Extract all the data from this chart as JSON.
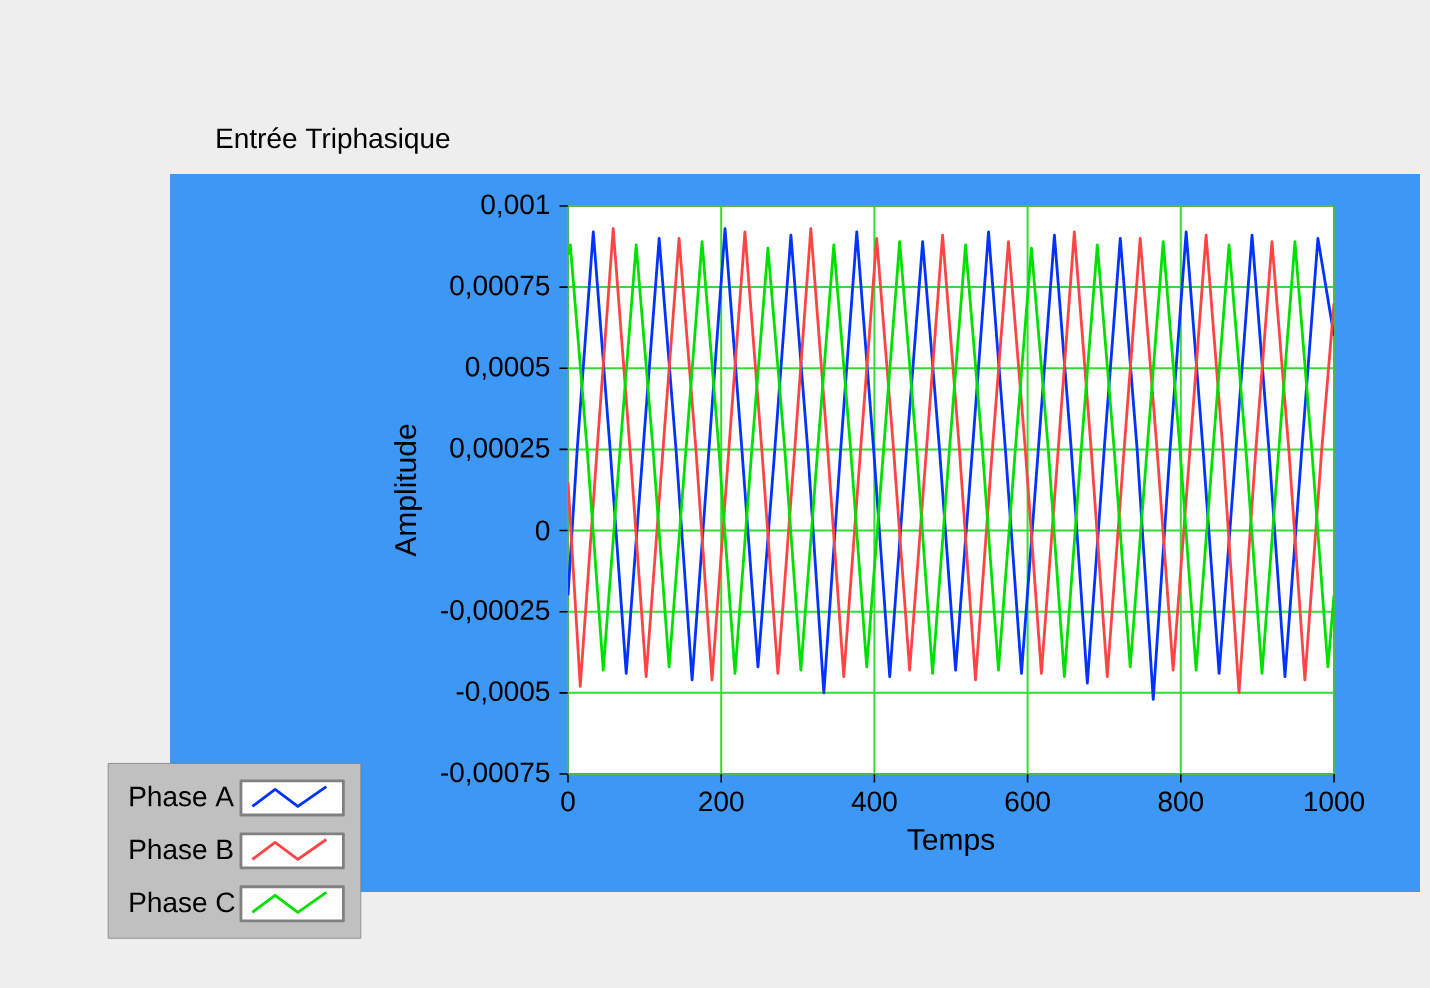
{
  "chart_data": {
    "type": "line",
    "title": "Entrée Triphasique",
    "xlabel": "Temps",
    "ylabel": "Amplitude",
    "xlim": [
      0,
      1000
    ],
    "ylim": [
      -0.00075,
      0.001
    ],
    "xticks": [
      0,
      200,
      400,
      600,
      800,
      1000
    ],
    "yticks": [
      {
        "value": -0.00075,
        "label": "-0,00075"
      },
      {
        "value": -0.0005,
        "label": "-0,0005"
      },
      {
        "value": -0.00025,
        "label": "-0,00025"
      },
      0,
      {
        "value": 0.00025,
        "label": "0,00025"
      },
      {
        "value": 0.0005,
        "label": "0,0005"
      },
      {
        "value": 0.00075,
        "label": "0,00075"
      },
      {
        "value": 0.001,
        "label": "0,001"
      }
    ],
    "grid": true,
    "legend": "bottom left",
    "series": [
      {
        "name": "Phase A",
        "color": "#0033ff",
        "x": [
          0,
          12,
          33,
          55,
          76,
          98,
          119,
          141,
          162,
          184,
          205,
          227,
          248,
          270,
          291,
          313,
          334,
          356,
          377,
          399,
          420,
          442,
          463,
          485,
          506,
          528,
          549,
          571,
          592,
          614,
          635,
          657,
          678,
          700,
          721,
          743,
          764,
          786,
          807,
          829,
          850,
          872,
          893,
          915,
          936,
          958,
          979,
          1000
        ],
        "values": [
          -0.0002,
          0.00025,
          0.00092,
          0.00025,
          -0.00044,
          0.00025,
          0.0009,
          0.00025,
          -0.00046,
          0.00025,
          0.00093,
          0.00025,
          -0.00042,
          0.00025,
          0.00091,
          0.00025,
          -0.0005,
          0.00025,
          0.00092,
          0.00025,
          -0.00045,
          0.00025,
          0.00089,
          0.00025,
          -0.00043,
          0.00025,
          0.00092,
          0.00025,
          -0.00044,
          0.00025,
          0.00091,
          0.00025,
          -0.00047,
          0.00025,
          0.0009,
          0.00025,
          -0.00052,
          0.00025,
          0.00092,
          0.00025,
          -0.00044,
          0.00025,
          0.00091,
          0.00025,
          -0.00045,
          0.00025,
          0.0009,
          0.0006
        ]
      },
      {
        "name": "Phase B",
        "color": "#ff4444",
        "x": [
          0,
          16,
          38,
          59,
          81,
          102,
          124,
          145,
          167,
          188,
          210,
          231,
          253,
          274,
          296,
          317,
          339,
          360,
          382,
          403,
          425,
          446,
          468,
          489,
          511,
          532,
          554,
          575,
          597,
          618,
          640,
          661,
          683,
          704,
          726,
          747,
          769,
          790,
          812,
          833,
          855,
          876,
          898,
          919,
          941,
          962,
          984,
          1000
        ],
        "values": [
          0.00015,
          -0.00048,
          0.00025,
          0.00093,
          0.00025,
          -0.00045,
          0.00025,
          0.0009,
          0.00025,
          -0.00046,
          0.00025,
          0.00092,
          0.00025,
          -0.00044,
          0.00025,
          0.00093,
          0.00025,
          -0.00045,
          0.00025,
          0.0009,
          0.00025,
          -0.00043,
          0.00025,
          0.00091,
          0.00025,
          -0.00046,
          0.00025,
          0.00089,
          0.00025,
          -0.00044,
          0.00025,
          0.00092,
          0.00025,
          -0.00045,
          0.00025,
          0.0009,
          0.00025,
          -0.00043,
          0.00025,
          0.00091,
          0.00025,
          -0.0005,
          0.00025,
          0.00089,
          0.00025,
          -0.00046,
          0.00025,
          0.0007
        ]
      },
      {
        "name": "Phase C",
        "color": "#00e000",
        "x": [
          0,
          3,
          25,
          46,
          68,
          89,
          111,
          132,
          154,
          175,
          197,
          218,
          240,
          261,
          283,
          304,
          326,
          347,
          369,
          390,
          412,
          433,
          455,
          476,
          498,
          519,
          541,
          562,
          584,
          605,
          627,
          648,
          670,
          691,
          713,
          734,
          756,
          777,
          799,
          820,
          842,
          863,
          885,
          906,
          928,
          949,
          971,
          992,
          1000
        ],
        "values": [
          0.00085,
          0.00088,
          0.00025,
          -0.00043,
          0.00025,
          0.00088,
          0.00025,
          -0.00042,
          0.00025,
          0.00089,
          0.00025,
          -0.00044,
          0.00025,
          0.00087,
          0.00025,
          -0.00043,
          0.00025,
          0.00088,
          0.00025,
          -0.00042,
          0.00025,
          0.00089,
          0.00025,
          -0.00044,
          0.00025,
          0.00088,
          0.00025,
          -0.00043,
          0.00025,
          0.00087,
          0.00025,
          -0.00045,
          0.00025,
          0.00088,
          0.00025,
          -0.00042,
          0.00025,
          0.00089,
          0.00025,
          -0.00043,
          0.00025,
          0.00088,
          0.00025,
          -0.00044,
          0.00025,
          0.00089,
          0.00025,
          -0.00042,
          -0.0002
        ]
      }
    ]
  }
}
